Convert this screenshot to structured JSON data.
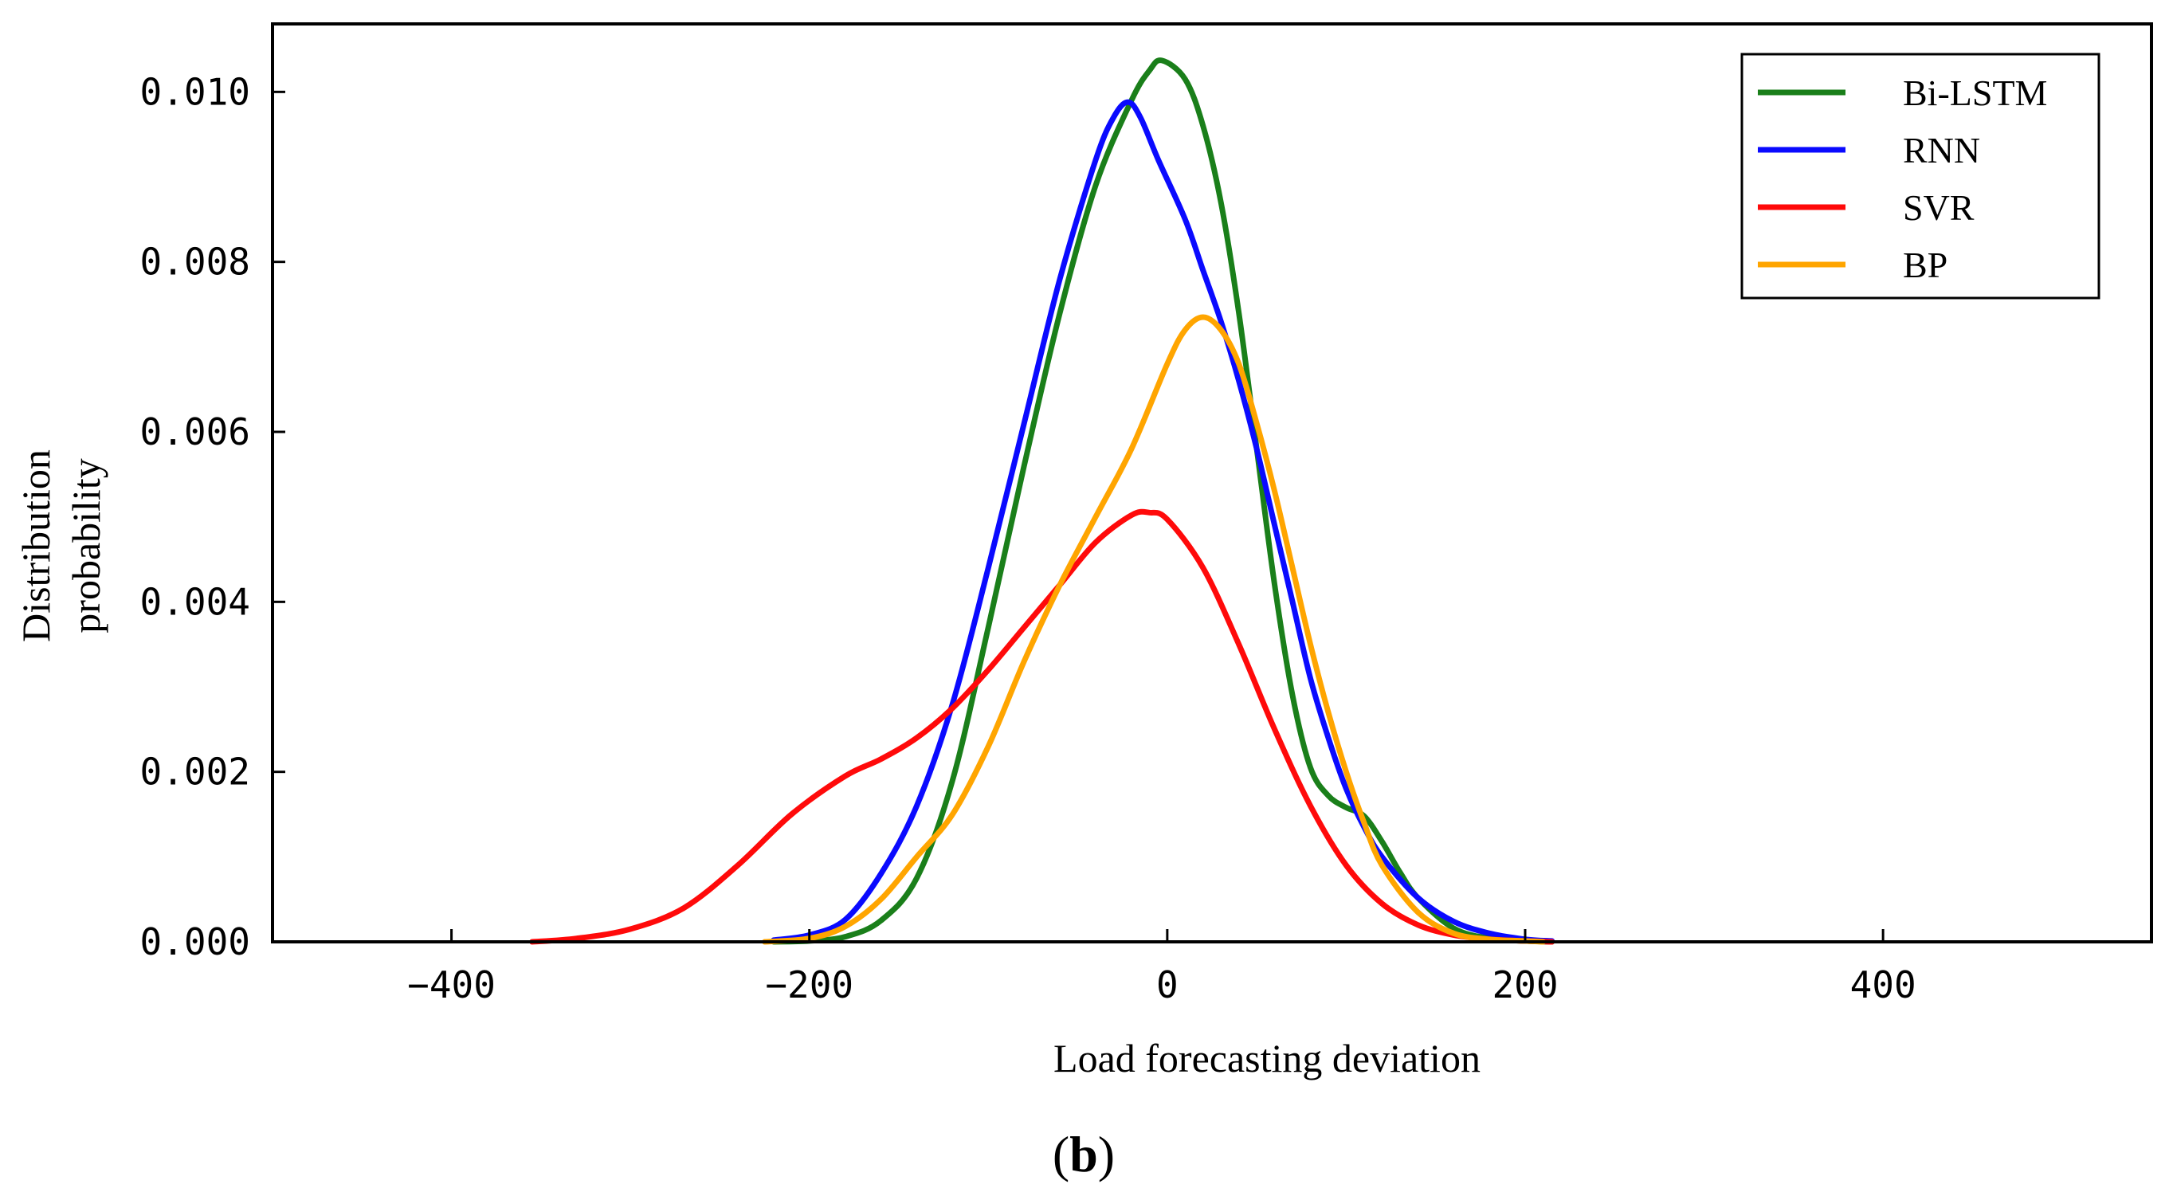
{
  "chart_data": {
    "type": "line",
    "title": "",
    "xlabel": "Load forecasting deviation",
    "ylabel_lines": [
      "Distribution",
      "probability"
    ],
    "panel_label": {
      "open": "(",
      "letter": "b",
      "close": ")"
    },
    "xlim": [
      -500,
      550
    ],
    "ylim": [
      0,
      0.0108
    ],
    "xticks": [
      -400,
      -200,
      0,
      200,
      400
    ],
    "xtick_labels": [
      "−400",
      "−200",
      "0",
      "200",
      "400"
    ],
    "yticks": [
      0,
      0.002,
      0.004,
      0.006,
      0.008,
      0.01
    ],
    "ytick_labels": [
      "0.000",
      "0.002",
      "0.004",
      "0.006",
      "0.008",
      "0.010"
    ],
    "grid": false,
    "legend_position": "top-right",
    "series": [
      {
        "name": "Bi-LSTM",
        "color": "#1a7f1a",
        "x": [
          -220,
          -200,
          -180,
          -160,
          -140,
          -120,
          -100,
          -80,
          -60,
          -40,
          -20,
          -10,
          -3,
          10,
          20,
          30,
          40,
          50,
          60,
          70,
          80,
          90,
          100,
          110,
          120,
          130,
          140,
          160,
          180,
          200,
          215
        ],
        "y": [
          0.0,
          1e-05,
          6e-05,
          0.00025,
          0.00075,
          0.0019,
          0.0037,
          0.0056,
          0.0074,
          0.0089,
          0.0099,
          0.01025,
          0.01037,
          0.01015,
          0.0096,
          0.0087,
          0.0074,
          0.0058,
          0.0042,
          0.0029,
          0.00205,
          0.00172,
          0.00158,
          0.00148,
          0.00118,
          0.00082,
          0.00052,
          0.00016,
          4e-05,
          1e-05,
          0.0
        ]
      },
      {
        "name": "RNN",
        "color": "#0a0aff",
        "x": [
          -220,
          -200,
          -180,
          -160,
          -140,
          -120,
          -100,
          -80,
          -60,
          -40,
          -30,
          -22,
          -15,
          -5,
          10,
          20,
          30,
          40,
          50,
          60,
          70,
          80,
          90,
          100,
          110,
          120,
          140,
          160,
          180,
          200,
          215
        ],
        "y": [
          2e-05,
          8e-05,
          0.00026,
          0.0008,
          0.0016,
          0.0028,
          0.0044,
          0.0061,
          0.0078,
          0.0092,
          0.0097,
          0.00988,
          0.0097,
          0.0092,
          0.0085,
          0.0079,
          0.0073,
          0.0066,
          0.0058,
          0.0049,
          0.004,
          0.0031,
          0.0024,
          0.0018,
          0.00135,
          0.001,
          0.00052,
          0.00024,
          0.0001,
          3e-05,
          1e-05
        ]
      },
      {
        "name": "SVR",
        "color": "#ff0a0a",
        "x": [
          -355,
          -330,
          -300,
          -270,
          -240,
          -210,
          -180,
          -160,
          -140,
          -120,
          -100,
          -80,
          -60,
          -40,
          -20,
          -10,
          0,
          20,
          40,
          60,
          80,
          100,
          120,
          140,
          160,
          180,
          200,
          215
        ],
        "y": [
          0.0,
          4e-05,
          0.00015,
          0.0004,
          0.0009,
          0.0015,
          0.00195,
          0.00215,
          0.0024,
          0.00275,
          0.0032,
          0.0037,
          0.0042,
          0.0047,
          0.00502,
          0.00505,
          0.00497,
          0.0044,
          0.0035,
          0.0025,
          0.0016,
          0.0009,
          0.00045,
          0.0002,
          8e-05,
          3e-05,
          1e-05,
          0.0
        ]
      },
      {
        "name": "BP",
        "color": "#ffa500",
        "x": [
          -225,
          -200,
          -180,
          -160,
          -140,
          -120,
          -100,
          -80,
          -60,
          -40,
          -20,
          0,
          10,
          20,
          30,
          40,
          50,
          60,
          70,
          80,
          90,
          100,
          110,
          120,
          140,
          160,
          180,
          200,
          210
        ],
        "y": [
          0.0,
          4e-05,
          0.00018,
          0.0005,
          0.001,
          0.0015,
          0.0023,
          0.0033,
          0.0042,
          0.005,
          0.0058,
          0.0068,
          0.0072,
          0.00735,
          0.0072,
          0.0068,
          0.0061,
          0.0053,
          0.0044,
          0.0035,
          0.0027,
          0.002,
          0.0014,
          0.0009,
          0.00035,
          0.0001,
          3e-05,
          1e-05,
          0.0
        ]
      }
    ]
  }
}
